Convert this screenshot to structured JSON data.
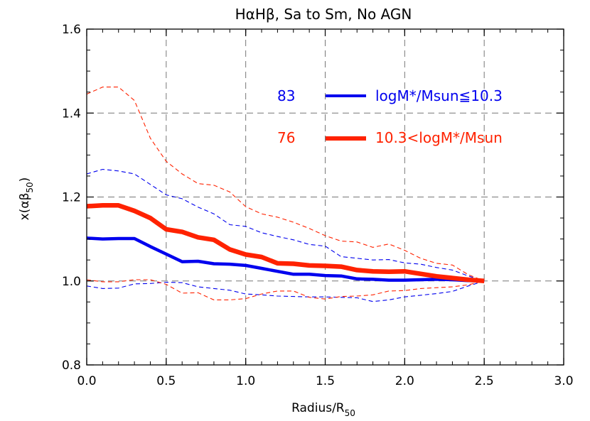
{
  "chart_data": {
    "type": "line",
    "title": "HαHβ, Sa to Sm, No AGN",
    "xlabel": "Radius/R",
    "xlabel_sub": "50",
    "ylabel": "x(αβ",
    "ylabel_sub": "50",
    "ylabel_close": ")",
    "xlim": [
      0.0,
      3.0
    ],
    "ylim": [
      0.8,
      1.6
    ],
    "grid": true,
    "x_ticks": [
      "0.0",
      "0.5",
      "1.0",
      "1.5",
      "2.0",
      "2.5",
      "3.0"
    ],
    "y_ticks": [
      "0.8",
      "1.0",
      "1.2",
      "1.4",
      "1.6"
    ],
    "x": [
      0.0,
      0.1,
      0.2,
      0.3,
      0.4,
      0.5,
      0.6,
      0.7,
      0.8,
      0.9,
      1.0,
      1.1,
      1.2,
      1.3,
      1.4,
      1.5,
      1.6,
      1.7,
      1.8,
      1.9,
      2.0,
      2.1,
      2.2,
      2.3,
      2.4,
      2.5
    ],
    "series": [
      {
        "name": "logM*/Msun≦10.3",
        "count": "83",
        "color": "#0000ee",
        "median": [
          1.102,
          1.1,
          1.101,
          1.101,
          1.082,
          1.064,
          1.046,
          1.047,
          1.041,
          1.04,
          1.037,
          1.03,
          1.023,
          1.016,
          1.016,
          1.013,
          1.012,
          1.005,
          1.004,
          1.002,
          1.002,
          1.003,
          1.004,
          1.003,
          1.001,
          1.0
        ],
        "upper": [
          1.255,
          1.266,
          1.262,
          1.255,
          1.23,
          1.205,
          1.196,
          1.176,
          1.16,
          1.134,
          1.13,
          1.115,
          1.106,
          1.098,
          1.087,
          1.083,
          1.058,
          1.054,
          1.05,
          1.051,
          1.043,
          1.04,
          1.032,
          1.026,
          1.012,
          1.0
        ],
        "lower": [
          0.988,
          0.982,
          0.983,
          0.993,
          0.994,
          0.997,
          0.996,
          0.986,
          0.982,
          0.978,
          0.969,
          0.967,
          0.964,
          0.963,
          0.962,
          0.962,
          0.961,
          0.96,
          0.951,
          0.955,
          0.962,
          0.966,
          0.97,
          0.975,
          0.988,
          1.0
        ]
      },
      {
        "name": "10.3<logM*/Msun",
        "count": "76",
        "color": "#ff2200",
        "median": [
          1.178,
          1.18,
          1.18,
          1.167,
          1.15,
          1.123,
          1.117,
          1.104,
          1.098,
          1.075,
          1.063,
          1.057,
          1.042,
          1.041,
          1.037,
          1.036,
          1.034,
          1.026,
          1.023,
          1.022,
          1.023,
          1.017,
          1.011,
          1.007,
          1.003,
          1.0
        ],
        "upper": [
          1.445,
          1.462,
          1.462,
          1.43,
          1.34,
          1.285,
          1.255,
          1.232,
          1.228,
          1.212,
          1.177,
          1.16,
          1.152,
          1.14,
          1.125,
          1.108,
          1.095,
          1.093,
          1.08,
          1.088,
          1.073,
          1.054,
          1.042,
          1.038,
          1.015,
          1.0
        ],
        "lower": [
          1.003,
          0.998,
          0.998,
          1.003,
          1.003,
          0.992,
          0.971,
          0.972,
          0.955,
          0.955,
          0.958,
          0.969,
          0.976,
          0.976,
          0.961,
          0.957,
          0.963,
          0.964,
          0.967,
          0.976,
          0.977,
          0.982,
          0.984,
          0.986,
          0.991,
          1.0
        ]
      }
    ]
  }
}
